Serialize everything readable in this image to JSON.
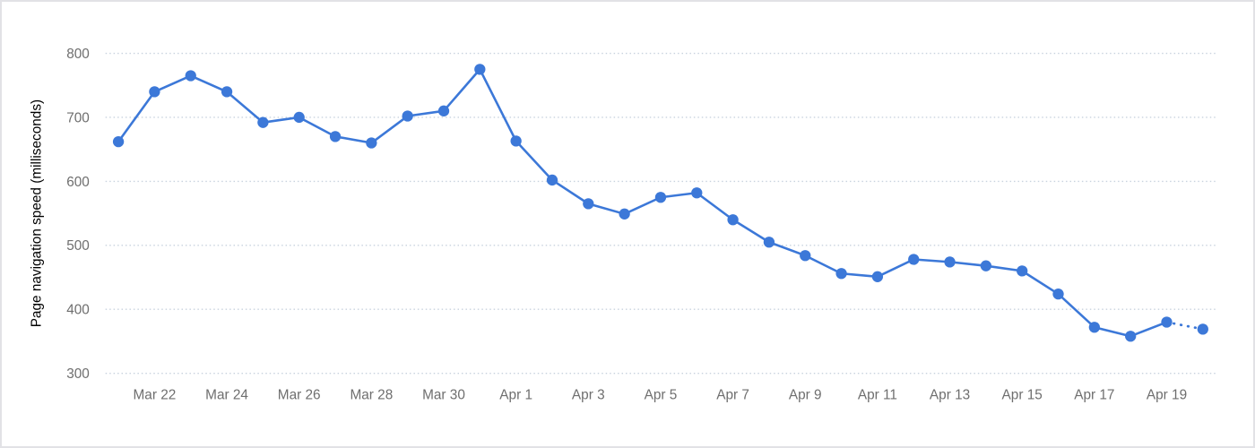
{
  "card": {
    "background": "#ffffff",
    "border_color": "#e2e2e6"
  },
  "chart_data": {
    "type": "line",
    "title": "",
    "xlabel": "",
    "ylabel": "Page navigation speed (milliseconds)",
    "categories": [
      "Mar 21",
      "Mar 22",
      "Mar 23",
      "Mar 24",
      "Mar 25",
      "Mar 26",
      "Mar 27",
      "Mar 28",
      "Mar 29",
      "Mar 30",
      "Mar 31",
      "Apr 1",
      "Apr 2",
      "Apr 3",
      "Apr 4",
      "Apr 5",
      "Apr 6",
      "Apr 7",
      "Apr 8",
      "Apr 9",
      "Apr 10",
      "Apr 11",
      "Apr 12",
      "Apr 13",
      "Apr 14",
      "Apr 15",
      "Apr 16",
      "Apr 17",
      "Apr 18",
      "Apr 19",
      "Apr 20"
    ],
    "series": [
      {
        "name": "Page navigation speed",
        "values": [
          662,
          740,
          765,
          740,
          692,
          700,
          670,
          660,
          702,
          710,
          775,
          663,
          602,
          565,
          549,
          575,
          582,
          540,
          505,
          484,
          456,
          451,
          478,
          474,
          468,
          460,
          424,
          372,
          358,
          380,
          369
        ],
        "color": "#3c78d8",
        "marker": "circle",
        "dashed_last_segment": true
      }
    ],
    "ylim": [
      300,
      800
    ],
    "yticks": [
      300,
      400,
      500,
      600,
      700,
      800
    ],
    "x_tick_step": 2,
    "x_tick_offset": 1,
    "grid": "horizontal-dotted",
    "gridline_color": "#c8d2de",
    "axis_text_color": "#6e6e6e",
    "legend_position": "none"
  }
}
